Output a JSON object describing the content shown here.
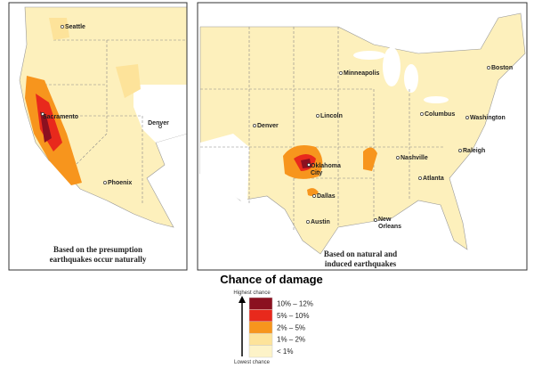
{
  "left_map": {
    "cities": [
      {
        "label": "Seattle"
      },
      {
        "label": "Sacramento"
      },
      {
        "label": "Denver"
      },
      {
        "label": "Phoenix"
      }
    ],
    "caption": [
      "Based on the presumption",
      "earthquakes occur naturally"
    ]
  },
  "right_map": {
    "cities": [
      {
        "label": "Minneapolis"
      },
      {
        "label": "Boston"
      },
      {
        "label": "Denver"
      },
      {
        "label": "Lincoln"
      },
      {
        "label": "Columbus"
      },
      {
        "label": "Washington"
      },
      {
        "lines": [
          "Oklahoma",
          "City"
        ]
      },
      {
        "label": "Nashville"
      },
      {
        "label": "Raleigh"
      },
      {
        "label": "Atlanta"
      },
      {
        "label": "Dallas"
      },
      {
        "label": "Austin"
      },
      {
        "lines": [
          "New",
          "Orleans"
        ]
      }
    ],
    "caption": [
      "Based on natural and",
      "induced earthquakes"
    ]
  },
  "legend": {
    "title": "Chance of damage",
    "high_label": "Highest chance",
    "low_label": "Lowest chance",
    "items": [
      {
        "label": "10% – 12%",
        "color": "#8b1020"
      },
      {
        "label": "5% – 10%",
        "color": "#e8291c"
      },
      {
        "label": "2% – 5%",
        "color": "#f7951d"
      },
      {
        "label": "1% – 2%",
        "color": "#fde39a"
      },
      {
        "label": "< 1%",
        "color": "#fdf3c8"
      }
    ]
  }
}
